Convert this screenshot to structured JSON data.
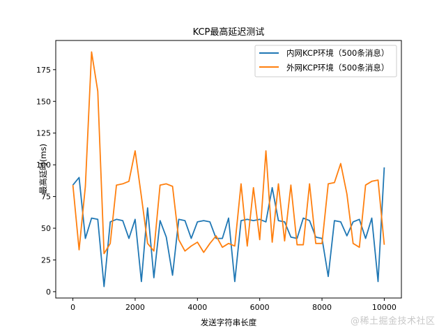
{
  "chart_data": {
    "type": "line",
    "title": "KCP最高延迟测试",
    "xlabel": "发送字符串长度",
    "ylabel": "最高延时(ms)",
    "xlim": [
      -550,
      10550
    ],
    "ylim": [
      -5,
      198
    ],
    "x_ticks": [
      0,
      2000,
      4000,
      6000,
      8000,
      10000
    ],
    "y_ticks": [
      0,
      25,
      50,
      75,
      100,
      125,
      150,
      175
    ],
    "grid": false,
    "legend_position": "upper right",
    "x": [
      0,
      200,
      400,
      600,
      800,
      1000,
      1200,
      1400,
      1600,
      1800,
      2000,
      2200,
      2400,
      2600,
      2800,
      3000,
      3200,
      3400,
      3600,
      3800,
      4000,
      4200,
      4400,
      4600,
      4800,
      5000,
      5200,
      5400,
      5600,
      5800,
      6000,
      6200,
      6400,
      6600,
      6800,
      7000,
      7200,
      7400,
      7600,
      7800,
      8000,
      8200,
      8400,
      8600,
      8800,
      9000,
      9200,
      9400,
      9600,
      9800,
      10000
    ],
    "series": [
      {
        "name": "内网KCP环境（500条消息）",
        "color": "#1f77b4",
        "values": [
          84,
          90,
          42,
          58,
          57,
          4,
          55,
          57,
          56,
          42,
          57,
          8,
          66,
          11,
          56,
          43,
          13,
          57,
          56,
          42,
          55,
          56,
          55,
          42,
          42,
          58,
          8,
          56,
          57,
          56,
          57,
          55,
          82,
          56,
          55,
          43,
          42,
          58,
          56,
          43,
          42,
          12,
          56,
          55,
          44,
          55,
          57,
          42,
          58,
          8,
          98
        ]
      },
      {
        "name": "外网KCP环境（500条消息）",
        "color": "#ff7f0e",
        "values": [
          84,
          33,
          83,
          189,
          158,
          30,
          38,
          84,
          85,
          87,
          111,
          75,
          38,
          32,
          84,
          85,
          83,
          41,
          32,
          36,
          39,
          31,
          38,
          44,
          35,
          38,
          36,
          85,
          36,
          82,
          41,
          111,
          39,
          85,
          40,
          84,
          37,
          37,
          85,
          38,
          38,
          85,
          86,
          101,
          77,
          38,
          35,
          84,
          87,
          88,
          37
        ]
      }
    ]
  },
  "watermark": "@稀土掘金技术社区"
}
